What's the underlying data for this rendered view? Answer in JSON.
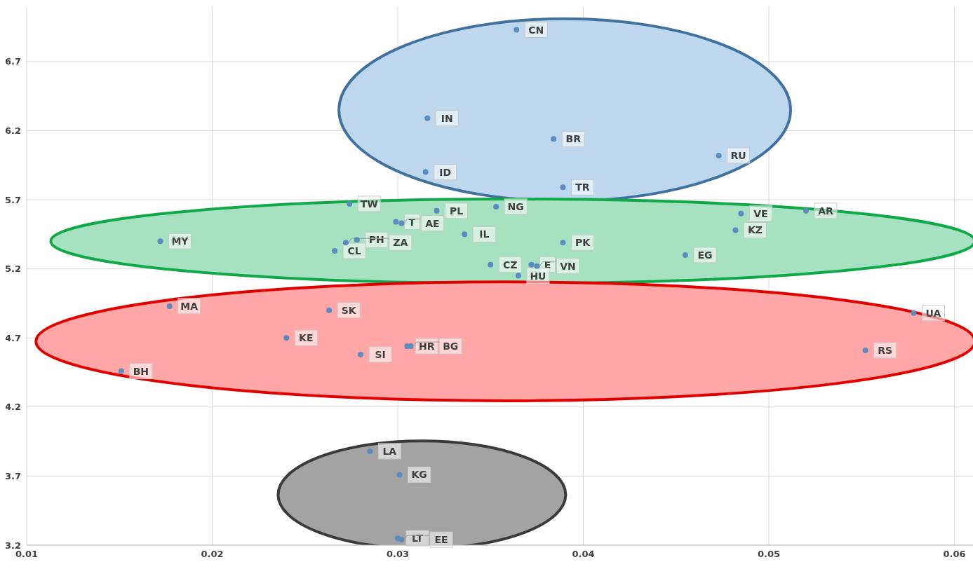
{
  "chart_data": {
    "type": "scatter",
    "x": [
      0.0364,
      0.0316,
      0.0384,
      0.0473,
      0.0315,
      0.0389,
      0.0274,
      0.0321,
      0.0353,
      0.0485,
      0.052,
      0.0299,
      0.0302,
      0.0336,
      0.0482,
      0.0172,
      0.0278,
      0.0272,
      0.0266,
      0.0389,
      0.0455,
      0.035,
      0.0372,
      0.0375,
      0.0365,
      0.0177,
      0.0263,
      0.0578,
      0.024,
      0.0305,
      0.0307,
      0.0552,
      0.028,
      0.0151,
      0.0285,
      0.0301,
      0.03,
      0.0302
    ],
    "values": [
      6.93,
      6.29,
      6.14,
      6.02,
      5.9,
      5.79,
      5.67,
      5.62,
      5.65,
      5.6,
      5.62,
      5.54,
      5.53,
      5.45,
      5.48,
      5.4,
      5.41,
      5.39,
      5.33,
      5.39,
      5.3,
      5.23,
      5.23,
      5.22,
      5.15,
      4.93,
      4.9,
      4.88,
      4.7,
      4.64,
      4.64,
      4.61,
      4.58,
      4.46,
      3.88,
      3.71,
      3.25,
      3.24
    ],
    "color": "#5b8bbf",
    "marker": "circle",
    "xlim": [
      0.01,
      0.061
    ],
    "xticks": [
      0.01,
      0.02,
      0.03,
      0.04,
      0.05,
      0.06
    ],
    "ylim": [
      3.2,
      7.1
    ],
    "yticks": [
      3.2,
      3.7,
      4.2,
      4.7,
      5.2,
      5.7,
      6.2,
      6.7
    ],
    "grid": true,
    "annotations": [
      {
        "text": "CN",
        "x": 0.0364,
        "y": 6.93
      },
      {
        "text": "IN",
        "x": 0.0316,
        "y": 6.29
      },
      {
        "text": "BR",
        "x": 0.0384,
        "y": 6.14
      },
      {
        "text": "RU",
        "x": 0.0473,
        "y": 6.02
      },
      {
        "text": "ID",
        "x": 0.0315,
        "y": 5.9
      },
      {
        "text": "TR",
        "x": 0.0389,
        "y": 5.79
      },
      {
        "text": "TW",
        "x": 0.0274,
        "y": 5.67
      },
      {
        "text": "PL",
        "x": 0.0321,
        "y": 5.62
      },
      {
        "text": "NG",
        "x": 0.0353,
        "y": 5.65
      },
      {
        "text": "VE",
        "x": 0.0485,
        "y": 5.6
      },
      {
        "text": "AR",
        "x": 0.052,
        "y": 5.62
      },
      {
        "text": "T",
        "x": 0.0299,
        "y": 5.54
      },
      {
        "text": "AE",
        "x": 0.0302,
        "y": 5.53
      },
      {
        "text": "IL",
        "x": 0.0336,
        "y": 5.45
      },
      {
        "text": "KZ",
        "x": 0.0482,
        "y": 5.48
      },
      {
        "text": "MY",
        "x": 0.0172,
        "y": 5.4
      },
      {
        "text": "PH",
        "x": 0.0278,
        "y": 5.41
      },
      {
        "text": "ZA",
        "x": 0.0272,
        "y": 5.39
      },
      {
        "text": "CL",
        "x": 0.0266,
        "y": 5.33
      },
      {
        "text": "PK",
        "x": 0.0389,
        "y": 5.39
      },
      {
        "text": "EG",
        "x": 0.0455,
        "y": 5.3
      },
      {
        "text": "CZ",
        "x": 0.035,
        "y": 5.23
      },
      {
        "text": "E",
        "x": 0.0372,
        "y": 5.23
      },
      {
        "text": "VN",
        "x": 0.0375,
        "y": 5.22
      },
      {
        "text": "HU",
        "x": 0.0365,
        "y": 5.15
      },
      {
        "text": "MA",
        "x": 0.0177,
        "y": 4.93
      },
      {
        "text": "SK",
        "x": 0.0263,
        "y": 4.9
      },
      {
        "text": "UA",
        "x": 0.0578,
        "y": 4.88
      },
      {
        "text": "KE",
        "x": 0.024,
        "y": 4.7
      },
      {
        "text": "HR",
        "x": 0.0305,
        "y": 4.64
      },
      {
        "text": "BG",
        "x": 0.0307,
        "y": 4.64
      },
      {
        "text": "RS",
        "x": 0.0552,
        "y": 4.61
      },
      {
        "text": "SI",
        "x": 0.028,
        "y": 4.58
      },
      {
        "text": "BH",
        "x": 0.0151,
        "y": 4.46
      },
      {
        "text": "LA",
        "x": 0.0285,
        "y": 3.88
      },
      {
        "text": "KG",
        "x": 0.0301,
        "y": 3.71
      },
      {
        "text": "LT",
        "x": 0.03,
        "y": 3.25
      },
      {
        "text": "EE",
        "x": 0.0302,
        "y": 3.24
      }
    ]
  }
}
